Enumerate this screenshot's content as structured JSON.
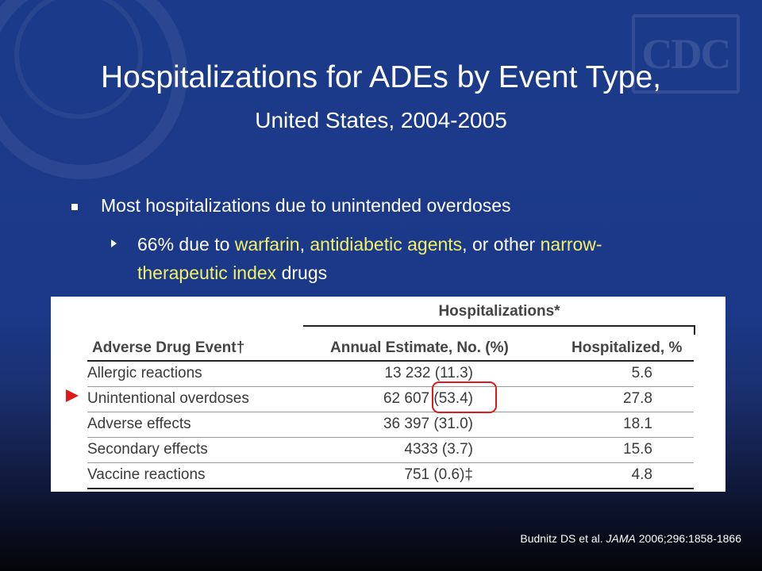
{
  "slide": {
    "title": "Hospitalizations for ADEs by Event Type,",
    "subtitle": "United States, 2004-2005",
    "bullet1": "Most hospitalizations due to unintended overdoses",
    "bullet2_parts": {
      "p1": "66% due to ",
      "h1": "warfarin",
      "p2": ", ",
      "h2": "antidiabetic agents",
      "p3": ", or other ",
      "h3": "narrow-therapeutic index",
      "p4": " drugs"
    },
    "logo_text": "CDC",
    "colors": {
      "background": "#1c3a8a",
      "highlight": "#f0f06a",
      "marker": "#e01818"
    }
  },
  "table": {
    "group_header": "Hospitalizations*",
    "columns": [
      "Adverse Drug Event†",
      "Annual Estimate, No. (%)",
      "Hospitalized, %"
    ],
    "rows": [
      {
        "event": "Allergic reactions",
        "estimate": "13 232 (11.3)",
        "hospitalized": "5.6"
      },
      {
        "event": "Unintentional overdoses",
        "estimate": "62 607 (53.4)",
        "hospitalized": "27.8"
      },
      {
        "event": "Adverse effects",
        "estimate": "36 397 (31.0)",
        "hospitalized": "18.1"
      },
      {
        "event": "Secondary effects",
        "estimate": "4333 (3.7)",
        "hospitalized": "15.6"
      },
      {
        "event": "Vaccine reactions",
        "estimate": "751 (0.6)‡",
        "hospitalized": "4.8"
      }
    ]
  },
  "citation": {
    "authors": "Budnitz DS et al. ",
    "journal": "JAMA",
    "rest": " 2006;296:1858-1866"
  }
}
